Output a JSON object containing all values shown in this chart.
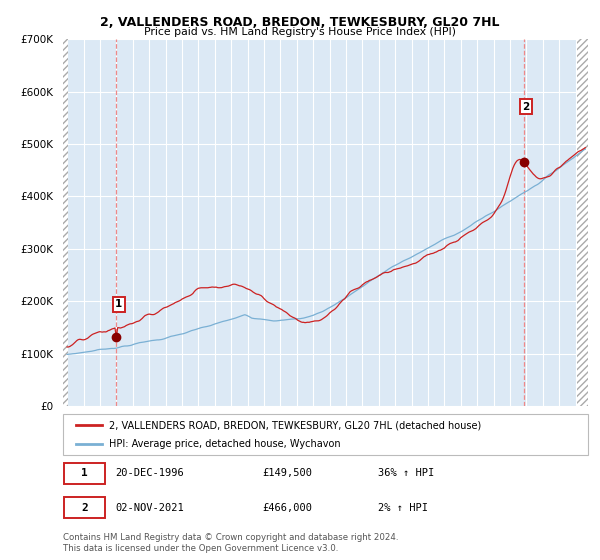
{
  "title": "2, VALLENDERS ROAD, BREDON, TEWKESBURY, GL20 7HL",
  "subtitle": "Price paid vs. HM Land Registry's House Price Index (HPI)",
  "legend_line1": "2, VALLENDERS ROAD, BREDON, TEWKESBURY, GL20 7HL (detached house)",
  "legend_line2": "HPI: Average price, detached house, Wychavon",
  "annotation1_date": "20-DEC-1996",
  "annotation1_price": "£149,500",
  "annotation1_hpi": "36% ↑ HPI",
  "annotation2_date": "02-NOV-2021",
  "annotation2_price": "£466,000",
  "annotation2_hpi": "2% ↑ HPI",
  "footer": "Contains HM Land Registry data © Crown copyright and database right 2024.\nThis data is licensed under the Open Government Licence v3.0.",
  "purchase1_year": 1996.97,
  "purchase1_value": 149500,
  "purchase2_year": 2021.84,
  "purchase2_value": 466000,
  "ylim": [
    0,
    700000
  ],
  "xlim_start": 1993.75,
  "xlim_end": 2025.75,
  "hpi_color": "#7ab0d4",
  "price_color": "#cc2222",
  "bg_color": "#dce9f5",
  "grid_color": "#ffffff",
  "dot_color": "#880000",
  "fig_bg": "#ffffff"
}
